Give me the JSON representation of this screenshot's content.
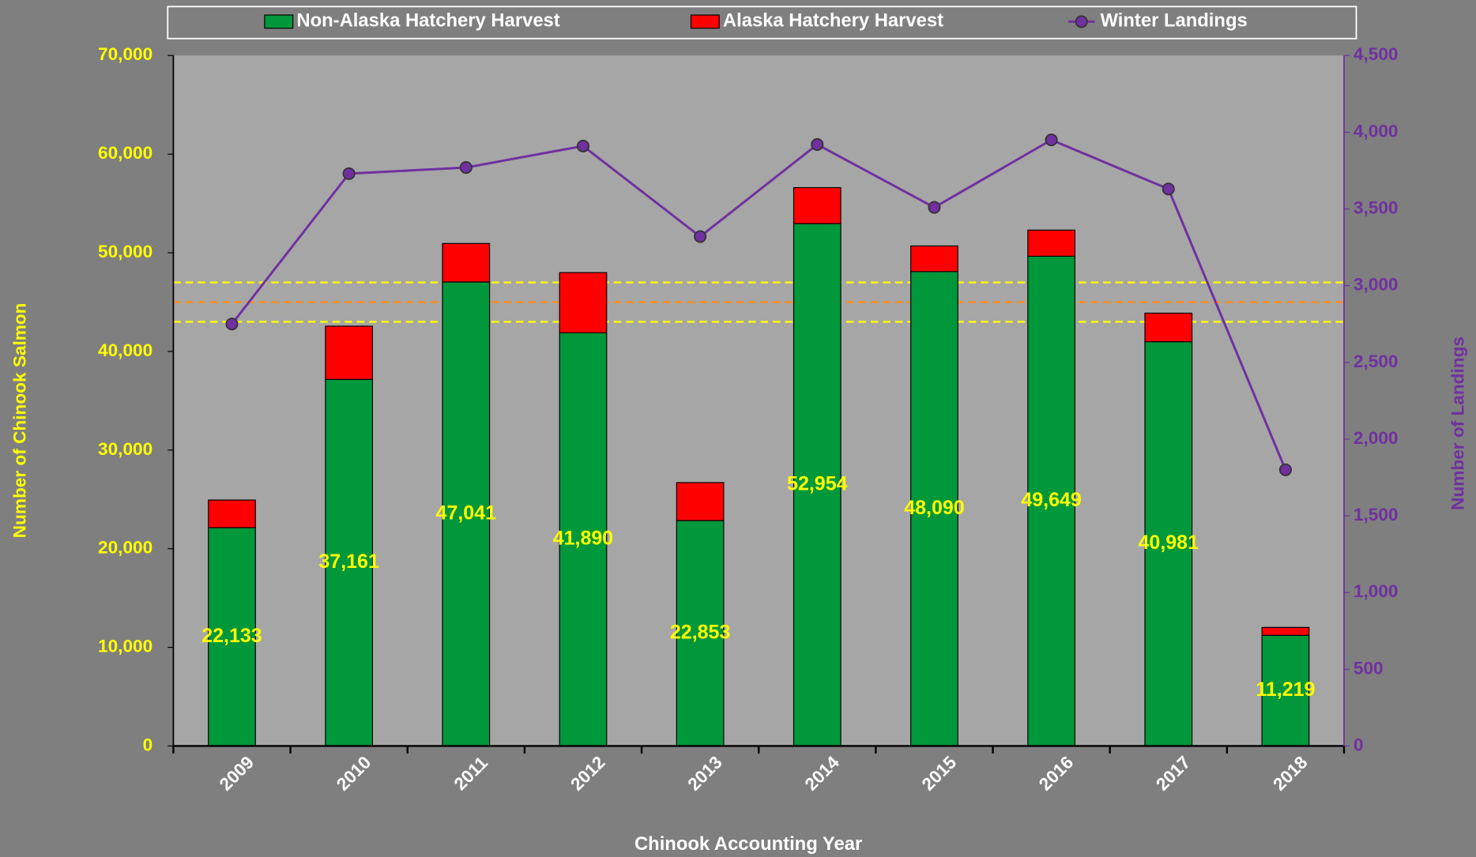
{
  "chart_data": {
    "type": "bar",
    "stacked": true,
    "x_label": "Chinook Accounting Year",
    "y_label": "Number of Chinook Salmon",
    "y2_label": "Number of Landings",
    "categories": [
      "2009",
      "2010",
      "2011",
      "2012",
      "2013",
      "2014",
      "2015",
      "2016",
      "2017",
      "2018"
    ],
    "series": [
      {
        "name": "Non-Alaska Hatchery Harvest",
        "type": "bar",
        "color": "#00983a",
        "values": [
          22133,
          37161,
          47041,
          41890,
          22853,
          52954,
          48090,
          49649,
          40981,
          11219
        ],
        "value_labels": [
          "22,133",
          "37,161",
          "47,041",
          "41,890",
          "22,853",
          "52,954",
          "48,090",
          "49,649",
          "40,981",
          "11,219"
        ]
      },
      {
        "name": "Alaska Hatchery Harvest",
        "type": "bar",
        "color": "#ff0000",
        "values": [
          2800,
          5400,
          3900,
          6100,
          3850,
          3650,
          2600,
          2650,
          2900,
          800
        ]
      },
      {
        "name": "Winter Landings",
        "type": "line",
        "axis": "y2",
        "color": "#7030a0",
        "values": [
          2750,
          3730,
          3770,
          3910,
          3320,
          3920,
          3510,
          3950,
          3630,
          1800
        ]
      }
    ],
    "reference_lines": [
      {
        "value": 47000,
        "color": "#ffff00"
      },
      {
        "value": 45000,
        "color": "#ff8c1a"
      },
      {
        "value": 43000,
        "color": "#ffff00"
      }
    ],
    "ylim": [
      0,
      70000
    ],
    "yticks": [
      0,
      {
        "value": 10000,
        "label": "10,000"
      },
      {
        "value": 20000,
        "label": "20,000"
      },
      {
        "value": 30000,
        "label": "30,000"
      },
      {
        "value": 40000,
        "label": "40,000"
      },
      {
        "value": 50000,
        "label": "50,000"
      },
      {
        "value": 60000,
        "label": "60,000"
      },
      {
        "value": 70000,
        "label": "70,000"
      }
    ],
    "y2lim": [
      0,
      4500
    ],
    "y2ticks": [
      0,
      500,
      {
        "value": 1000,
        "label": "1,000"
      },
      {
        "value": 1500,
        "label": "1,500"
      },
      {
        "value": 2000,
        "label": "2,000"
      },
      {
        "value": 2500,
        "label": "2,500"
      },
      {
        "value": 3000,
        "label": "3,000"
      },
      {
        "value": 3500,
        "label": "3,500"
      },
      {
        "value": 4000,
        "label": "4,000"
      },
      {
        "value": 4500,
        "label": "4,500"
      }
    ],
    "legend": "top",
    "grid": false
  }
}
